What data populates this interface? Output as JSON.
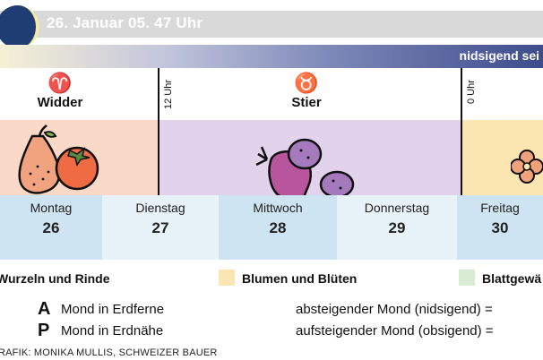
{
  "header": {
    "title": "26. Januar 05. 47 Uhr"
  },
  "trend": {
    "label": "nidsigend sei"
  },
  "zodiac": [
    {
      "symbol": "♈",
      "name": "Widder"
    },
    {
      "symbol": "♉",
      "name": "Stier"
    }
  ],
  "time_markers": [
    "12 Uhr",
    "0 Uhr"
  ],
  "badge": {
    "letter": "P"
  },
  "days": [
    {
      "name": "Montag",
      "num": "26"
    },
    {
      "name": "Dienstag",
      "num": "27"
    },
    {
      "name": "Mittwoch",
      "num": "28"
    },
    {
      "name": "Donnerstag",
      "num": "29"
    },
    {
      "name": "Freitag",
      "num": "30"
    }
  ],
  "legend": [
    {
      "label": "Wurzeln und Rinde",
      "color": "#fbd9c8"
    },
    {
      "label": "Blumen und Blüten",
      "color": "#fbe6b2"
    },
    {
      "label": "Blattgewä",
      "color": "#d8ebd3"
    }
  ],
  "info": {
    "a_letter": "A",
    "a_text": "Mond in Erdferne",
    "p_letter": "P",
    "p_text": "Mond in Erdnähe",
    "desc_down": "absteigender Mond (nidsigend) =",
    "desc_up": "aufsteigender Mond (obsigend) ="
  },
  "credit": "RAFIK: MONIKA MULLIS, SCHWEIZER BAUER",
  "colors": {
    "band_root": "#fbd9c8",
    "band_flower": "#fbe6b2",
    "band_leaf": "#d8ebd3",
    "band_fruit": "#e2d2ec",
    "badge": "#e23f34"
  }
}
